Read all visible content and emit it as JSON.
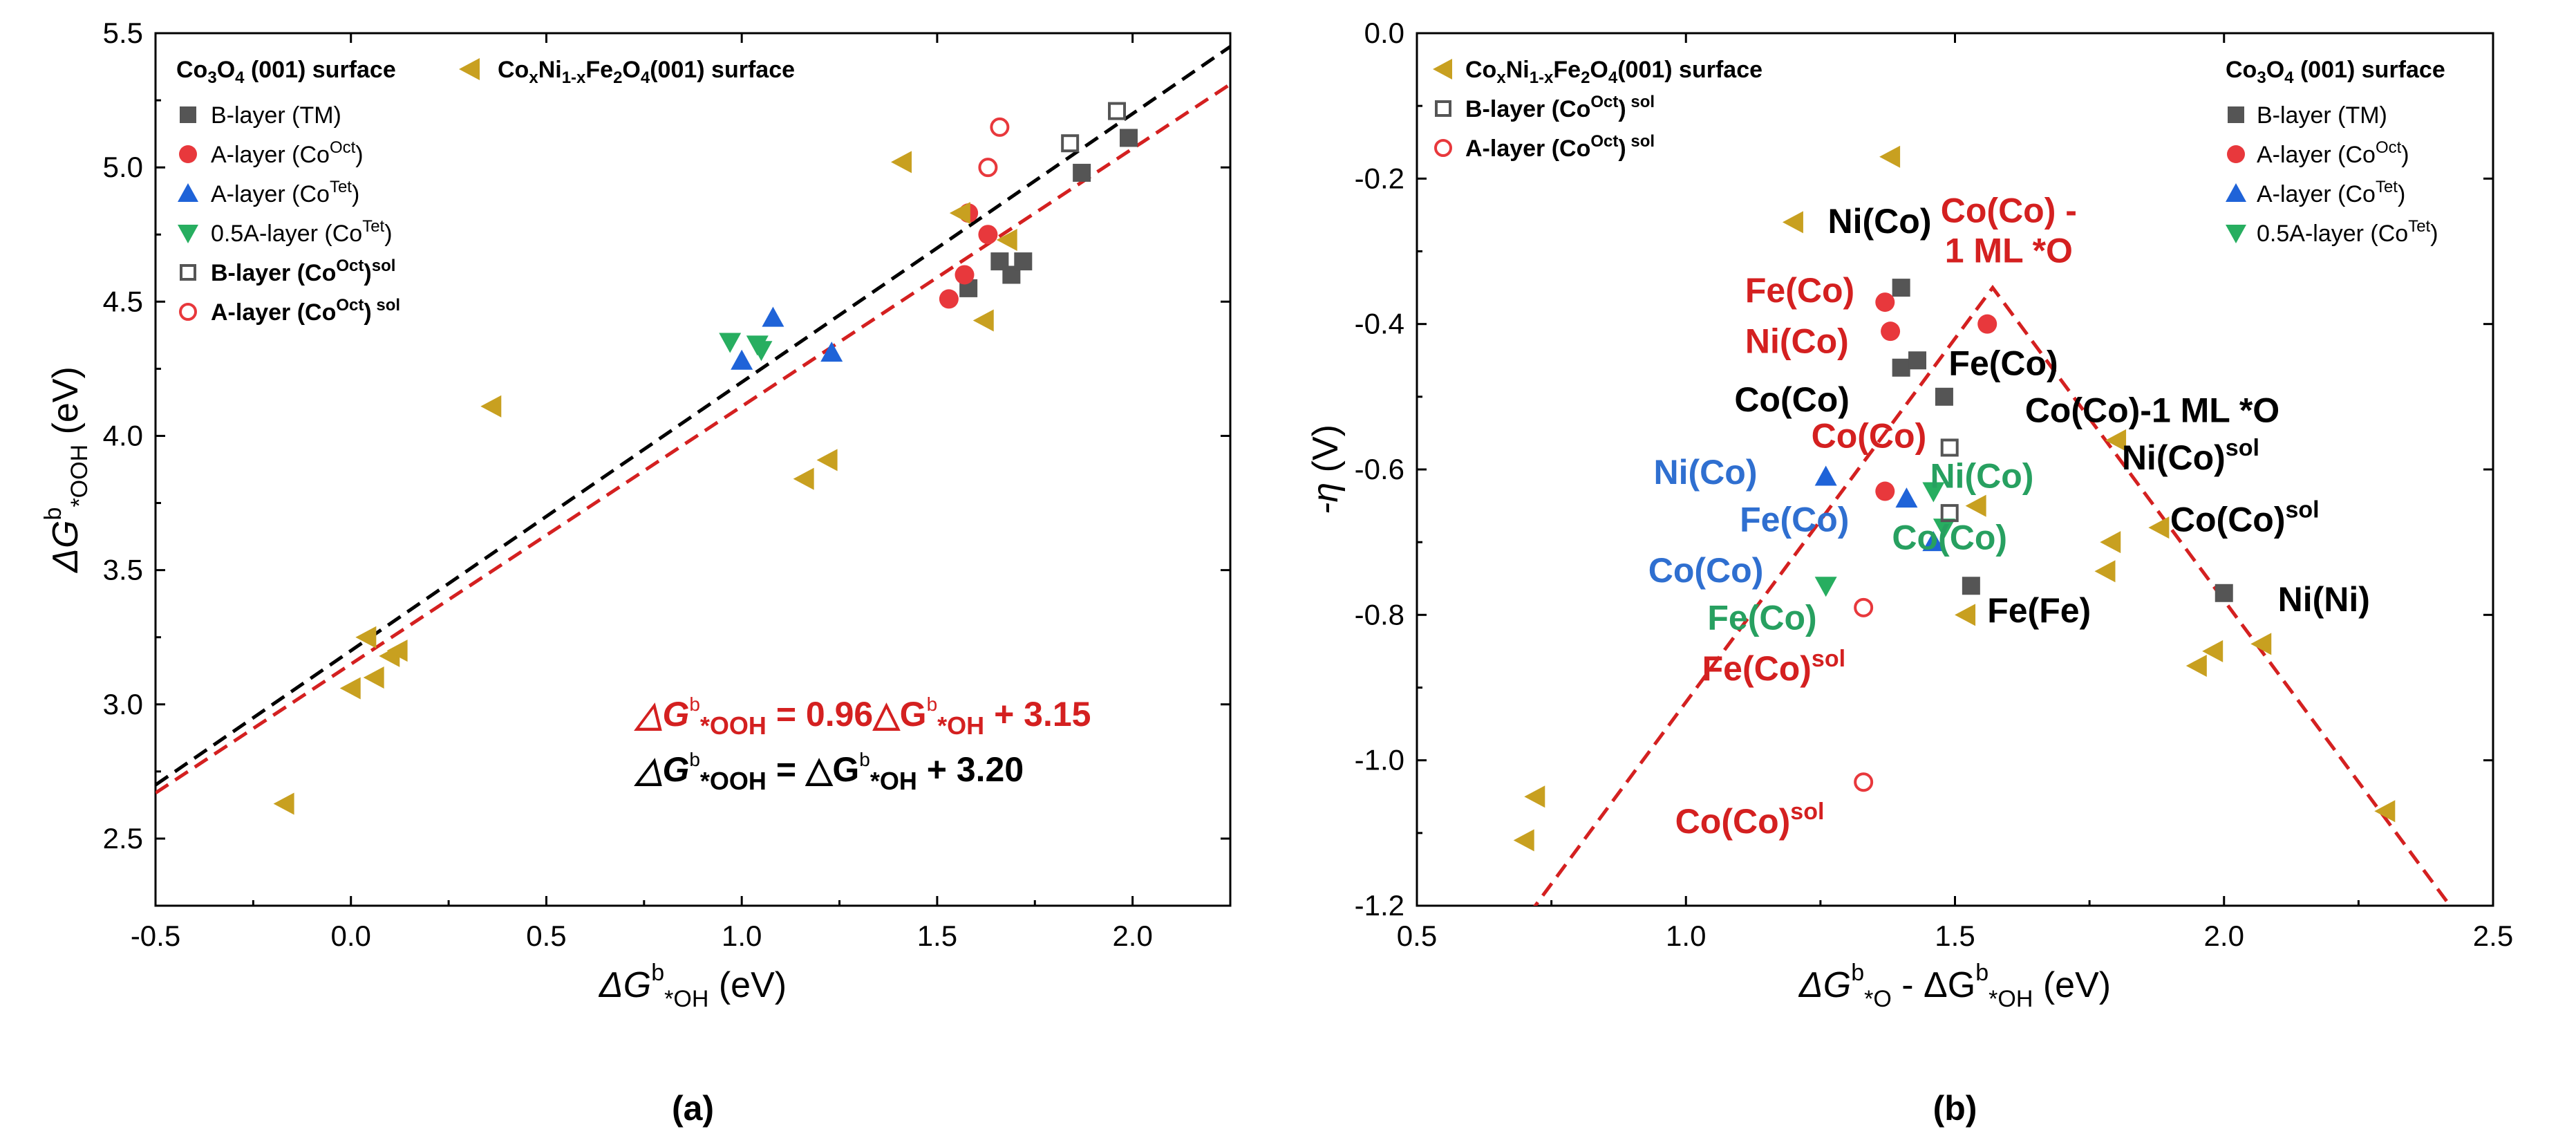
{
  "colors": {
    "tm": "#555555",
    "aoct": "#e8383c",
    "atet": "#1f63d8",
    "half": "#27ae60",
    "cnf": "#c8a020",
    "red_text": "#d42020",
    "blue_text": "#2f6fd0",
    "green_text": "#27a060",
    "fit_red": "#d42020",
    "fit_black": "#000000"
  },
  "chart_data": [
    {
      "type": "scatter",
      "panel_label": "(a)",
      "xlabel": {
        "main": "ΔG",
        "sup": "b",
        "sub": "*OH",
        "unit": " (eV)"
      },
      "ylabel": {
        "main": "ΔG",
        "sup": "b",
        "sub": "*OOH",
        "unit": " (eV)"
      },
      "xlim": [
        -0.5,
        2.25
      ],
      "ylim": [
        2.25,
        5.5
      ],
      "xticks": [
        -0.5,
        0.0,
        0.5,
        1.0,
        1.5,
        2.0
      ],
      "yticks": [
        2.5,
        3.0,
        3.5,
        4.0,
        4.5,
        5.0,
        5.5
      ],
      "xtick_labels": [
        "-0.5",
        "0.0",
        "0.5",
        "1.0",
        "1.5",
        "2.0"
      ],
      "ytick_labels": [
        "2.5",
        "3.0",
        "3.5",
        "4.0",
        "4.5",
        "5.0",
        "5.5"
      ],
      "legend_header_left": {
        "a": "Co",
        "b": "3",
        "c": "O",
        "d": "4",
        "e": " (001) surface"
      },
      "legend_header_right": {
        "a": "Co",
        "b": "x",
        "c": "Ni",
        "d": "1-x",
        "e": "Fe",
        "f": "2",
        "g": "O",
        "h": "4",
        "i": "(001) surface"
      },
      "legend": [
        {
          "marker": "square",
          "color": "tm",
          "main": "B-layer (TM)",
          "sup": "",
          "tail": "",
          "bold": false
        },
        {
          "marker": "circle",
          "color": "aoct",
          "main": "A-layer (Co",
          "sup": "Oct",
          "tail": ")",
          "bold": false
        },
        {
          "marker": "triangle-up",
          "color": "atet",
          "main": "A-layer (Co",
          "sup": "Tet",
          "tail": ")",
          "bold": false
        },
        {
          "marker": "triangle-down",
          "color": "half",
          "main": "0.5A-layer (Co",
          "sup": "Tet",
          "tail": ")",
          "bold": false
        },
        {
          "marker": "open-square",
          "color": "tm",
          "main": "B-layer (Co",
          "sup": "Oct",
          "tail": ")",
          "sup2": "sol",
          "bold": true
        },
        {
          "marker": "open-circle",
          "color": "aoct",
          "main": "A-layer (Co",
          "sup": "Oct",
          "tail": ")",
          "sup2": " sol",
          "bold": true
        }
      ],
      "fits": [
        {
          "name": "fit-red",
          "color": "fit_red",
          "slope": 0.96,
          "intercept": 3.15
        },
        {
          "name": "fit-black",
          "color": "fit_black",
          "slope": 1.0,
          "intercept": 3.2
        }
      ],
      "equations": [
        {
          "color": "fit_red",
          "lhs_sym": "△G",
          "lhs_sup": "b",
          "lhs_sub": "*OOH",
          "mid": " = 0.96△G",
          "mid_sup": "b",
          "mid_sub": "*OH",
          "rhs": " + 3.15"
        },
        {
          "color": "fit_black",
          "lhs_sym": "△G",
          "lhs_sup": "b",
          "lhs_sub": "*OOH",
          "mid": " = △G",
          "mid_sup": "b",
          "mid_sub": "*OH",
          "rhs": " + 3.20"
        }
      ],
      "series": [
        {
          "name": "B-layer (TM)",
          "marker": "square",
          "color": "tm",
          "points": [
            [
              1.58,
              4.55
            ],
            [
              1.66,
              4.65
            ],
            [
              1.69,
              4.6
            ],
            [
              1.72,
              4.65
            ],
            [
              1.87,
              4.98
            ],
            [
              1.99,
              5.11
            ]
          ]
        },
        {
          "name": "A-layer (CoOct)",
          "marker": "circle",
          "color": "aoct",
          "points": [
            [
              1.53,
              4.51
            ],
            [
              1.57,
              4.6
            ],
            [
              1.58,
              4.83
            ],
            [
              1.63,
              4.75
            ]
          ]
        },
        {
          "name": "A-layer (CoTet)",
          "marker": "triangle-up",
          "color": "atet",
          "points": [
            [
              1.0,
              4.28
            ],
            [
              1.08,
              4.44
            ],
            [
              1.23,
              4.31
            ]
          ]
        },
        {
          "name": "0.5A-layer (CoTet)",
          "marker": "triangle-down",
          "color": "half",
          "points": [
            [
              0.97,
              4.35
            ],
            [
              1.04,
              4.34
            ],
            [
              1.05,
              4.32
            ]
          ]
        },
        {
          "name": "B-layer (CoOct) sol",
          "marker": "open-square",
          "color": "tm",
          "points": [
            [
              1.84,
              5.09
            ],
            [
              1.96,
              5.21
            ]
          ]
        },
        {
          "name": "A-layer (CoOct) sol",
          "marker": "open-circle",
          "color": "aoct",
          "points": [
            [
              1.63,
              5.0
            ],
            [
              1.66,
              5.15
            ]
          ]
        },
        {
          "name": "CoxNi1-xFe2O4(001) surface",
          "marker": "triangle-left",
          "color": "cnf",
          "points": [
            [
              -0.17,
              2.63
            ],
            [
              0.0,
              3.06
            ],
            [
              0.04,
              3.25
            ],
            [
              0.06,
              3.1
            ],
            [
              0.1,
              3.18
            ],
            [
              0.12,
              3.2
            ],
            [
              0.36,
              4.11
            ],
            [
              1.16,
              3.84
            ],
            [
              1.22,
              3.91
            ],
            [
              1.41,
              5.02
            ],
            [
              1.56,
              4.83
            ],
            [
              1.62,
              4.43
            ],
            [
              1.68,
              4.73
            ]
          ]
        }
      ]
    },
    {
      "type": "scatter",
      "panel_label": "(b)",
      "xlabel": {
        "main": "ΔG",
        "sup": "b",
        "sub": "*O",
        "main2": " - ΔG",
        "sup2": "b",
        "sub2": "*OH",
        "unit": " (eV)"
      },
      "ylabel": {
        "main": "-η",
        "unit": " (V)"
      },
      "xlim": [
        0.5,
        2.5
      ],
      "ylim": [
        -1.2,
        0.0
      ],
      "xticks": [
        0.5,
        1.0,
        1.5,
        2.0,
        2.5
      ],
      "yticks": [
        -1.2,
        -1.0,
        -0.8,
        -0.6,
        -0.4,
        -0.2,
        0.0
      ],
      "xtick_labels": [
        "0.5",
        "1.0",
        "1.5",
        "2.0",
        "2.5"
      ],
      "ytick_labels": [
        "-1.2",
        "-1.0",
        "-0.8",
        "-0.6",
        "-0.4",
        "-0.2",
        "0.0"
      ],
      "volcano": {
        "apex": [
          1.57,
          -0.35
        ],
        "slope_left": 1.0,
        "slope_right": -1.0
      },
      "legend_left": [
        {
          "marker": "triangle-left",
          "color": "cnf",
          "a": "Co",
          "b": "x",
          "c": "Ni",
          "d": "1-x",
          "e": "Fe",
          "f": "2",
          "g": "O",
          "h": "4",
          "i": "(001) surface"
        },
        {
          "marker": "open-square",
          "color": "tm",
          "main": "B-layer (Co",
          "sup": "Oct",
          "tail": ")",
          "sup2": " sol"
        },
        {
          "marker": "open-circle",
          "color": "aoct",
          "main": "A-layer (Co",
          "sup": "Oct",
          "tail": ")",
          "sup2": " sol"
        }
      ],
      "legend_right_header": {
        "a": "Co",
        "b": "3",
        "c": "O",
        "d": "4",
        "e": " (001) surface"
      },
      "legend_right": [
        {
          "marker": "square",
          "color": "tm",
          "main": "B-layer (TM)",
          "sup": "",
          "tail": ""
        },
        {
          "marker": "circle",
          "color": "aoct",
          "main": "A-layer (Co",
          "sup": "Oct",
          "tail": ")"
        },
        {
          "marker": "triangle-up",
          "color": "atet",
          "main": "A-layer (Co",
          "sup": "Tet",
          "tail": ")"
        },
        {
          "marker": "triangle-down",
          "color": "half",
          "main": "0.5A-layer (Co",
          "sup": "Tet",
          "tail": ")"
        }
      ],
      "series": [
        {
          "name": "B-layer (TM)",
          "marker": "square",
          "color": "tm",
          "points": [
            [
              1.4,
              -0.35
            ],
            [
              1.4,
              -0.46
            ],
            [
              1.43,
              -0.45
            ],
            [
              1.48,
              -0.5
            ],
            [
              1.53,
              -0.76
            ],
            [
              2.0,
              -0.77
            ]
          ]
        },
        {
          "name": "A-layer (CoOct)",
          "marker": "circle",
          "color": "aoct",
          "points": [
            [
              1.37,
              -0.37
            ],
            [
              1.38,
              -0.41
            ],
            [
              1.56,
              -0.4
            ],
            [
              1.37,
              -0.63
            ]
          ]
        },
        {
          "name": "A-layer (CoTet)",
          "marker": "triangle-up",
          "color": "atet",
          "points": [
            [
              1.26,
              -0.61
            ],
            [
              1.41,
              -0.64
            ],
            [
              1.46,
              -0.7
            ]
          ]
        },
        {
          "name": "0.5A-layer (CoTet)",
          "marker": "triangle-down",
          "color": "half",
          "points": [
            [
              1.26,
              -0.76
            ],
            [
              1.46,
              -0.63
            ],
            [
              1.48,
              -0.68
            ]
          ]
        },
        {
          "name": "B-layer (CoOct) sol",
          "marker": "open-square",
          "color": "tm",
          "points": [
            [
              1.49,
              -0.57
            ],
            [
              1.49,
              -0.66
            ]
          ]
        },
        {
          "name": "A-layer (CoOct) sol",
          "marker": "open-circle",
          "color": "aoct",
          "points": [
            [
              1.33,
              -0.79
            ],
            [
              1.33,
              -1.03
            ]
          ]
        },
        {
          "name": "CoxNi1-xFe2O4(001) surface",
          "marker": "triangle-left",
          "color": "cnf",
          "points": [
            [
              0.7,
              -1.11
            ],
            [
              0.72,
              -1.05
            ],
            [
              1.2,
              -0.26
            ],
            [
              1.38,
              -0.17
            ],
            [
              1.52,
              -0.8
            ],
            [
              1.54,
              -0.65
            ],
            [
              1.78,
              -0.74
            ],
            [
              1.79,
              -0.7
            ],
            [
              1.8,
              -0.56
            ],
            [
              1.88,
              -0.68
            ],
            [
              1.95,
              -0.87
            ],
            [
              1.98,
              -0.85
            ],
            [
              2.07,
              -0.84
            ],
            [
              2.3,
              -1.07
            ]
          ]
        }
      ],
      "annotations": [
        {
          "text": "Co(Co) -",
          "sup": "",
          "color": "red_text",
          "x": 1.6,
          "y": -0.26,
          "anchor": "middle"
        },
        {
          "text": "1 ML *O",
          "sup": "",
          "color": "red_text",
          "x": 1.6,
          "y": -0.315,
          "anchor": "middle"
        },
        {
          "text": "Ni(Co)",
          "sup": "",
          "color": "black",
          "x": 1.36,
          "y": -0.275,
          "anchor": "middle"
        },
        {
          "text": "Fe(Co)",
          "sup": "",
          "color": "red_text",
          "x": 1.11,
          "y": -0.37,
          "anchor": "start"
        },
        {
          "text": "Ni(Co)",
          "sup": "",
          "color": "red_text",
          "x": 1.11,
          "y": -0.44,
          "anchor": "start"
        },
        {
          "text": "Co(Co)",
          "sup": "",
          "color": "black",
          "x": 1.09,
          "y": -0.52,
          "anchor": "start"
        },
        {
          "text": "Fe(Co)",
          "sup": "",
          "color": "black",
          "x": 1.59,
          "y": -0.47,
          "anchor": "middle"
        },
        {
          "text": "Co(Co)-1 ML *O",
          "sup": "",
          "color": "black",
          "x": 1.63,
          "y": -0.535,
          "anchor": "start"
        },
        {
          "text": "Co(Co)",
          "sup": "",
          "color": "red_text",
          "x": 1.34,
          "y": -0.57,
          "anchor": "middle"
        },
        {
          "text": "Ni(Co)",
          "sup": "",
          "color": "green_text",
          "x": 1.55,
          "y": -0.625,
          "anchor": "middle"
        },
        {
          "text": "Ni(Co)",
          "sup": "sol",
          "color": "black",
          "x": 1.81,
          "y": -0.6,
          "anchor": "start"
        },
        {
          "text": "Ni(Co)",
          "sup": "",
          "color": "blue_text",
          "x": 0.94,
          "y": -0.62,
          "anchor": "start"
        },
        {
          "text": "Co(Co)",
          "sup": "sol",
          "color": "black",
          "x": 1.9,
          "y": -0.685,
          "anchor": "start"
        },
        {
          "text": "Fe(Co)",
          "sup": "",
          "color": "blue_text",
          "x": 1.1,
          "y": -0.685,
          "anchor": "start"
        },
        {
          "text": "Co(Co)",
          "sup": "",
          "color": "green_text",
          "x": 1.49,
          "y": -0.71,
          "anchor": "middle"
        },
        {
          "text": "Co(Co)",
          "sup": "",
          "color": "blue_text",
          "x": 0.93,
          "y": -0.755,
          "anchor": "start"
        },
        {
          "text": "Ni(Ni)",
          "sup": "",
          "color": "black",
          "x": 2.1,
          "y": -0.795,
          "anchor": "start"
        },
        {
          "text": "Fe(Fe)",
          "sup": "",
          "color": "black",
          "x": 1.56,
          "y": -0.81,
          "anchor": "start"
        },
        {
          "text": "Fe(Co)",
          "sup": "",
          "color": "green_text",
          "x": 1.04,
          "y": -0.82,
          "anchor": "start"
        },
        {
          "text": "Fe(Co)",
          "sup": "sol",
          "color": "red_text",
          "x": 1.03,
          "y": -0.89,
          "anchor": "start"
        },
        {
          "text": "Co(Co)",
          "sup": "sol",
          "color": "red_text",
          "x": 0.98,
          "y": -1.1,
          "anchor": "start"
        }
      ]
    }
  ]
}
